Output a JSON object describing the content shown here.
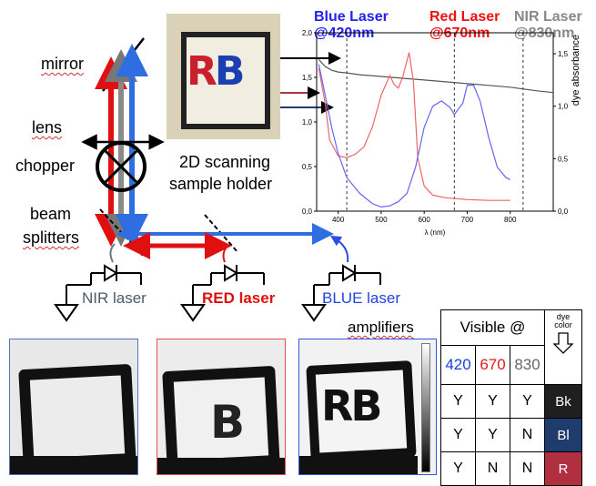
{
  "labels": {
    "mirror": "mirror",
    "lens": "lens",
    "chopper": "chopper",
    "beam": "beam",
    "splitters": "splitters",
    "scan_line1": "2D scanning",
    "scan_line2": "sample holder",
    "sample_text": "RB",
    "nir_laser": "NIR laser",
    "red_laser": "RED laser",
    "blue_laser": "BLUE laser",
    "amplifiers": "amplifiers"
  },
  "chart_data": {
    "type": "line",
    "xlabel": "λ (nm)",
    "ylabel_right": "dye absorbance",
    "xlim": [
      350,
      900
    ],
    "ylim_left": [
      0.0,
      2.0
    ],
    "ylim_right": [
      0.0,
      1.7
    ],
    "x_ticks": [
      "400",
      "500",
      "600",
      "700",
      "800"
    ],
    "y_left_ticks": [
      "0,0",
      "0,5",
      "1,0",
      "1,5",
      "2,0"
    ],
    "y_right_ticks": [
      "0,0",
      "0,5",
      "1,0",
      "1,5"
    ],
    "lasers": [
      {
        "name": "Blue Laser",
        "wavelength": "@420nm",
        "value": 420,
        "color": "#2222ee"
      },
      {
        "name": "Red Laser",
        "wavelength": "@670nm",
        "value": 670,
        "color": "#ee1111"
      },
      {
        "name": "NIR Laser",
        "wavelength": "@830nm",
        "value": 830,
        "color": "#888888"
      }
    ],
    "series": [
      {
        "color": "#555555",
        "axis": "left",
        "x": [
          355,
          370,
          385,
          400,
          420,
          450,
          500,
          550,
          600,
          650,
          700,
          750,
          800,
          860,
          900
        ],
        "y": [
          1.7,
          1.62,
          1.58,
          1.56,
          1.55,
          1.53,
          1.51,
          1.49,
          1.47,
          1.45,
          1.43,
          1.41,
          1.39,
          1.35,
          1.33
        ]
      },
      {
        "color": "#ee6666",
        "axis": "left",
        "x": [
          355,
          370,
          380,
          400,
          420,
          440,
          460,
          480,
          500,
          520,
          530,
          540,
          550,
          565,
          575,
          585,
          600,
          620,
          650,
          700,
          750,
          800
        ],
        "y": [
          1.6,
          1.2,
          0.8,
          0.62,
          0.6,
          0.64,
          0.72,
          0.95,
          1.3,
          1.52,
          1.42,
          1.38,
          1.5,
          1.78,
          1.45,
          0.6,
          0.28,
          0.18,
          0.15,
          0.13,
          0.12,
          0.12
        ]
      },
      {
        "color": "#6666ee",
        "axis": "right",
        "x": [
          355,
          370,
          385,
          400,
          420,
          450,
          480,
          500,
          520,
          540,
          560,
          580,
          600,
          620,
          640,
          660,
          670,
          690,
          700,
          715,
          730,
          750,
          770,
          790,
          800
        ],
        "y": [
          1.4,
          1.1,
          0.8,
          0.55,
          0.32,
          0.17,
          0.07,
          0.04,
          0.05,
          0.09,
          0.17,
          0.42,
          0.8,
          1.0,
          1.05,
          0.99,
          0.92,
          1.03,
          1.2,
          1.2,
          1.05,
          0.7,
          0.42,
          0.32,
          0.3
        ]
      }
    ]
  },
  "table": {
    "header": "Visible @",
    "dye_color_label": "dye color",
    "wavelengths": [
      {
        "text": "420",
        "color": "#1a3fe0"
      },
      {
        "text": "670",
        "color": "#e01a1a"
      },
      {
        "text": "830",
        "color": "#666666"
      }
    ],
    "rows": [
      {
        "cells": [
          "Y",
          "Y",
          "Y"
        ],
        "dye": "Bk",
        "bg": "#1f1f1f"
      },
      {
        "cells": [
          "Y",
          "Y",
          "N"
        ],
        "dye": "Bl",
        "bg": "#1f3c6e"
      },
      {
        "cells": [
          "Y",
          "N",
          "N"
        ],
        "dye": "R",
        "bg": "#b03040"
      }
    ]
  }
}
